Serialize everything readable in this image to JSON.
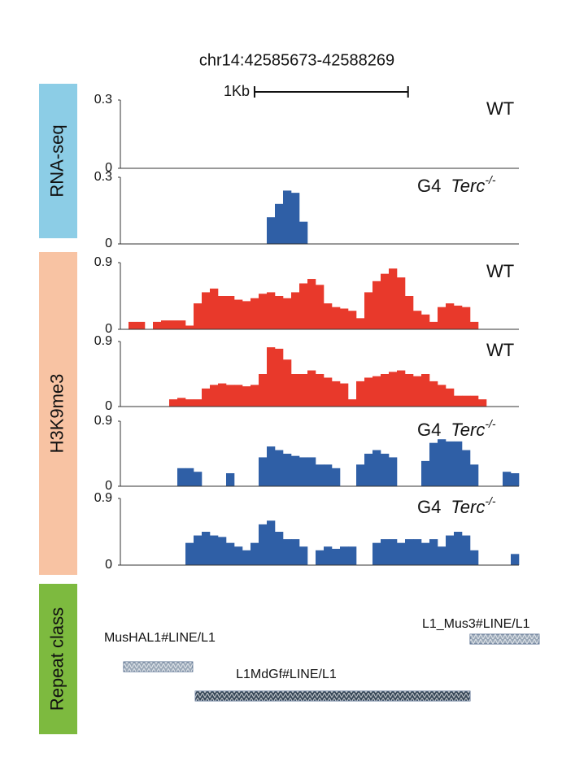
{
  "chart_data": {
    "type": "genome-tracks",
    "title": "chr14:42585673-42588269",
    "xlim": [
      42585673,
      42588269
    ],
    "scale_bar": {
      "label": "1Kb",
      "start": 42586547,
      "length": 1000
    },
    "groups": [
      {
        "name": "RNA-seq",
        "color": "#8ccde6"
      },
      {
        "name": "H3K9me3",
        "color": "#f8c3a3"
      },
      {
        "name": "Repeat class",
        "color": "#7dba3f"
      }
    ],
    "tracks": [
      {
        "group": 0,
        "label": "WT",
        "color": "#2f5fa6",
        "ylim": [
          0,
          0.3
        ],
        "yticks": [
          0,
          0.3
        ],
        "values": [
          0,
          0,
          0,
          0,
          0,
          0,
          0,
          0,
          0,
          0,
          0,
          0,
          0,
          0,
          0,
          0,
          0,
          0,
          0,
          0,
          0,
          0,
          0,
          0,
          0,
          0,
          0,
          0,
          0,
          0,
          0,
          0,
          0,
          0,
          0,
          0,
          0,
          0,
          0,
          0,
          0,
          0,
          0,
          0,
          0,
          0,
          0,
          0,
          0
        ]
      },
      {
        "group": 0,
        "label": "G4",
        "gene": "Terc",
        "sup": "-/-",
        "color": "#2f5fa6",
        "ylim": [
          0,
          0.3
        ],
        "yticks": [
          0,
          0.3
        ],
        "values": [
          0,
          0,
          0,
          0,
          0,
          0,
          0,
          0,
          0,
          0,
          0,
          0,
          0,
          0,
          0,
          0,
          0,
          0,
          0.12,
          0.18,
          0.24,
          0.23,
          0.1,
          0,
          0,
          0,
          0,
          0,
          0,
          0,
          0,
          0,
          0,
          0,
          0,
          0,
          0,
          0,
          0,
          0,
          0,
          0,
          0,
          0,
          0,
          0,
          0,
          0,
          0
        ]
      },
      {
        "group": 1,
        "label": "WT",
        "color": "#e8392b",
        "ylim": [
          0,
          0.9
        ],
        "yticks": [
          0,
          0.9
        ],
        "values": [
          0,
          0.1,
          0.1,
          0,
          0.1,
          0.12,
          0.12,
          0.12,
          0.05,
          0.35,
          0.5,
          0.55,
          0.45,
          0.45,
          0.4,
          0.38,
          0.42,
          0.48,
          0.5,
          0.45,
          0.42,
          0.5,
          0.62,
          0.68,
          0.6,
          0.35,
          0.3,
          0.28,
          0.25,
          0.15,
          0.5,
          0.65,
          0.75,
          0.82,
          0.7,
          0.45,
          0.25,
          0.2,
          0.1,
          0.3,
          0.35,
          0.32,
          0.3,
          0.1,
          0,
          0,
          0,
          0,
          0
        ]
      },
      {
        "group": 1,
        "label": "WT",
        "color": "#e8392b",
        "ylim": [
          0,
          0.9
        ],
        "yticks": [
          0,
          0.9
        ],
        "values": [
          0,
          0,
          0,
          0,
          0,
          0,
          0.1,
          0.12,
          0.1,
          0.1,
          0.25,
          0.3,
          0.32,
          0.3,
          0.3,
          0.28,
          0.3,
          0.45,
          0.82,
          0.8,
          0.65,
          0.45,
          0.45,
          0.5,
          0.45,
          0.4,
          0.35,
          0.32,
          0.1,
          0.35,
          0.4,
          0.42,
          0.45,
          0.48,
          0.5,
          0.45,
          0.42,
          0.45,
          0.35,
          0.3,
          0.25,
          0.15,
          0.15,
          0.15,
          0.1,
          0,
          0,
          0,
          0
        ]
      },
      {
        "group": 1,
        "label": "G4",
        "gene": "Terc",
        "sup": "-/-",
        "color": "#2f5fa6",
        "ylim": [
          0,
          0.9
        ],
        "yticks": [
          0,
          0.9
        ],
        "values": [
          0,
          0,
          0,
          0,
          0,
          0,
          0,
          0.25,
          0.25,
          0.2,
          0,
          0,
          0,
          0.18,
          0,
          0,
          0,
          0.4,
          0.55,
          0.5,
          0.45,
          0.42,
          0.4,
          0.4,
          0.3,
          0.3,
          0.25,
          0,
          0,
          0.3,
          0.45,
          0.5,
          0.45,
          0.4,
          0,
          0,
          0,
          0.35,
          0.6,
          0.65,
          0.62,
          0.62,
          0.5,
          0.3,
          0,
          0,
          0,
          0.2,
          0.18
        ]
      },
      {
        "group": 1,
        "label": "G4",
        "gene": "Terc",
        "sup": "-/-",
        "color": "#2f5fa6",
        "ylim": [
          0,
          0.9
        ],
        "yticks": [
          0,
          0.9
        ],
        "values": [
          0,
          0,
          0,
          0,
          0,
          0,
          0,
          0,
          0.3,
          0.4,
          0.45,
          0.4,
          0.38,
          0.3,
          0.25,
          0.2,
          0.3,
          0.55,
          0.6,
          0.45,
          0.35,
          0.35,
          0.25,
          0,
          0.2,
          0.25,
          0.22,
          0.25,
          0.25,
          0,
          0,
          0.3,
          0.35,
          0.35,
          0.3,
          0.35,
          0.35,
          0.3,
          0.35,
          0.25,
          0.4,
          0.45,
          0.4,
          0.2,
          0,
          0,
          0,
          0,
          0.15
        ]
      }
    ],
    "repeats": [
      {
        "label": "MusHAL1#LINE/L1",
        "start": 42585694,
        "end": 42586144,
        "color": "#9aa8b8"
      },
      {
        "label": "L1MdGf#LINE/L1",
        "start": 42586161,
        "end": 42587951,
        "color": "#3a4a5a"
      },
      {
        "label": "L1_Mus3#LINE/L1",
        "start": 42587951,
        "end": 42588401,
        "color": "#9aa8b8"
      }
    ]
  }
}
